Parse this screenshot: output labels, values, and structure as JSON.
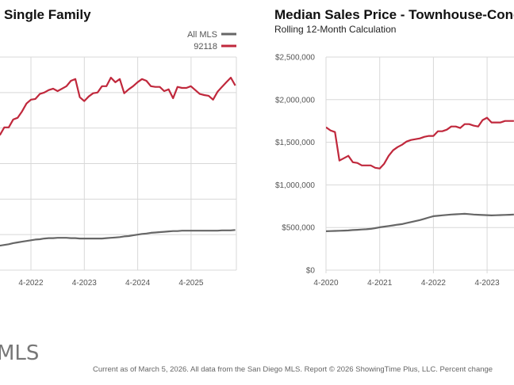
{
  "chart_data": [
    {
      "type": "line",
      "title": "Single Family",
      "ylim": [
        0,
        6000000
      ],
      "grid": true,
      "legend_placement": "top-right",
      "x_ticks": [
        "4-2022",
        "4-2023",
        "4-2024",
        "4-2025"
      ],
      "x_start": "2021-09",
      "series": [
        {
          "name": "All MLS",
          "color": "#666666",
          "values": [
            690000,
            710000,
            730000,
            760000,
            780000,
            800000,
            820000,
            840000,
            860000,
            870000,
            890000,
            900000,
            900000,
            910000,
            910000,
            910000,
            900000,
            900000,
            890000,
            890000,
            890000,
            890000,
            890000,
            890000,
            900000,
            910000,
            920000,
            930000,
            950000,
            960000,
            980000,
            1000000,
            1020000,
            1030000,
            1050000,
            1060000,
            1070000,
            1080000,
            1090000,
            1100000,
            1100000,
            1110000,
            1110000,
            1110000,
            1110000,
            1110000,
            1110000,
            1110000,
            1110000,
            1110000,
            1120000,
            1120000,
            1120000,
            1130000
          ]
        },
        {
          "name": "92118",
          "color": "#c0283c",
          "values": [
            3800000,
            4020000,
            4020000,
            4240000,
            4290000,
            4470000,
            4690000,
            4800000,
            4820000,
            4960000,
            5000000,
            5070000,
            5110000,
            5040000,
            5110000,
            5180000,
            5330000,
            5380000,
            4870000,
            4760000,
            4890000,
            4980000,
            5000000,
            5180000,
            5180000,
            5420000,
            5290000,
            5380000,
            4980000,
            5090000,
            5180000,
            5290000,
            5380000,
            5330000,
            5180000,
            5160000,
            5160000,
            5040000,
            5090000,
            4840000,
            5160000,
            5130000,
            5130000,
            5180000,
            5070000,
            4960000,
            4930000,
            4910000,
            4800000,
            5020000,
            5160000,
            5290000,
            5420000,
            5200000
          ]
        }
      ]
    },
    {
      "type": "line",
      "title": "Median Sales Price - Townhouse-Cond",
      "subtitle": "Rolling 12-Month Calculation",
      "ylim": [
        0,
        2500000
      ],
      "grid": true,
      "y_ticks": [
        "$0",
        "$500,000",
        "$1,000,000",
        "$1,500,000",
        "$2,000,000",
        "$2,500,000"
      ],
      "x_ticks": [
        "4-2020",
        "4-2021",
        "4-2022",
        "4-2023"
      ],
      "x_start": "2020-04",
      "series": [
        {
          "color": "#666666",
          "values": [
            456000,
            458000,
            460000,
            462000,
            464000,
            466000,
            470000,
            473000,
            477000,
            480000,
            484000,
            493000,
            503000,
            510000,
            518000,
            525000,
            533000,
            540000,
            552000,
            564000,
            575000,
            587000,
            602000,
            618000,
            633000,
            638000,
            643000,
            648000,
            652000,
            655000,
            658000,
            661000,
            657000,
            652000,
            650000,
            647000,
            645000,
            642000,
            644000,
            646000,
            648000,
            650000,
            652000
          ]
        },
        {
          "color": "#c0283c",
          "values": [
            1676000,
            1639000,
            1620000,
            1285000,
            1313000,
            1341000,
            1266000,
            1257000,
            1229000,
            1229000,
            1229000,
            1201000,
            1192000,
            1248000,
            1341000,
            1406000,
            1443000,
            1471000,
            1508000,
            1527000,
            1536000,
            1546000,
            1564000,
            1574000,
            1574000,
            1629000,
            1629000,
            1648000,
            1685000,
            1685000,
            1667000,
            1713000,
            1713000,
            1695000,
            1685000,
            1760000,
            1788000,
            1732000,
            1732000,
            1732000,
            1750000,
            1750000,
            1750000
          ]
        }
      ]
    }
  ],
  "footer": {
    "logo_text": "MLS",
    "note": "Current as of March 5, 2026. All data from the San Diego MLS. Report © 2026 ShowingTime Plus, LLC. Percent change"
  }
}
